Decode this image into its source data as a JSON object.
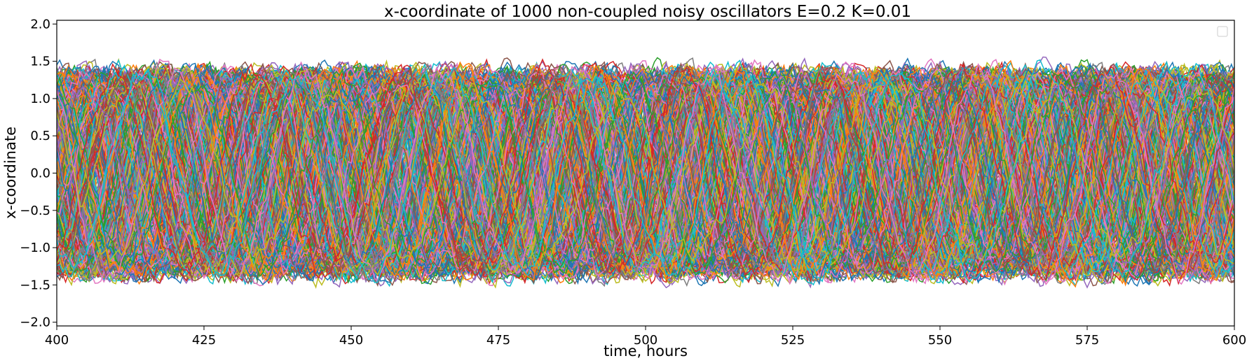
{
  "chart_data": {
    "type": "line",
    "title": "x-coordinate of 1000 non-coupled noisy oscillators E=0.2 K=0.01",
    "xlabel": "time, hours",
    "ylabel": "x-coordinate",
    "xlim": [
      400,
      600
    ],
    "ylim": [
      -2.05,
      2.05
    ],
    "x_ticks": [
      400,
      425,
      450,
      475,
      500,
      525,
      550,
      575,
      600
    ],
    "x_tick_labels": [
      "400",
      "425",
      "450",
      "475",
      "500",
      "525",
      "550",
      "575",
      "600"
    ],
    "y_ticks": [
      -2.0,
      -1.5,
      -1.0,
      -0.5,
      0.0,
      0.5,
      1.0,
      1.5,
      2.0
    ],
    "y_tick_labels": [
      "−2.0",
      "−1.5",
      "−1.0",
      "−0.5",
      "0.0",
      "0.5",
      "1.0",
      "1.5",
      "2.0"
    ],
    "grid": false,
    "legend": {
      "placement": "top-right",
      "entries": []
    },
    "series_count": 1000,
    "series_colors": [
      "#1f77b4",
      "#ff7f0e",
      "#2ca02c",
      "#d62728",
      "#9467bd",
      "#8c564b",
      "#e377c2",
      "#7f7f7f",
      "#bcbd22",
      "#17becf"
    ],
    "envelope": {
      "typical_amplitude": 1.3,
      "min_observed": -1.72,
      "max_observed": 1.84
    },
    "period_hours": 24
  }
}
